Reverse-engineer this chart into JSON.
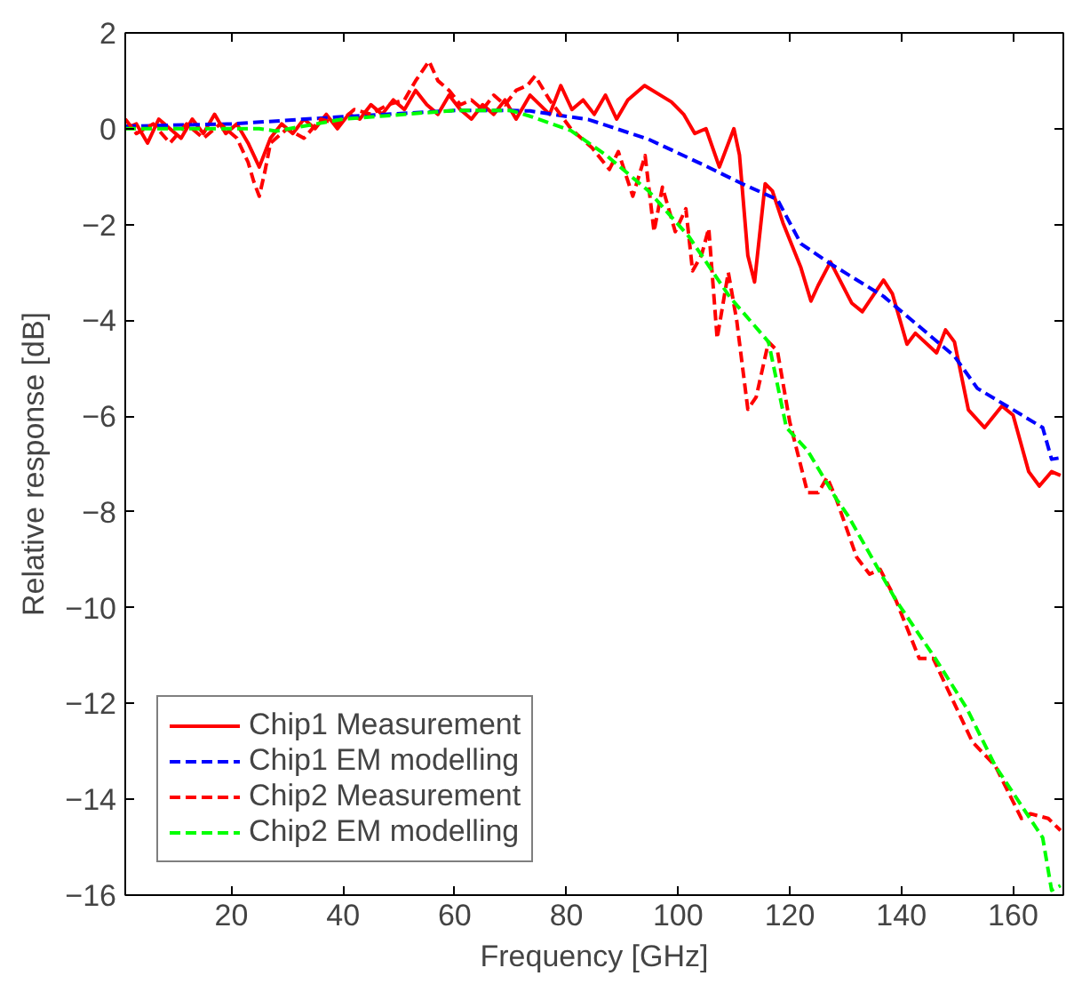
{
  "chart_data": {
    "type": "line",
    "xlabel": "Frequency [GHz]",
    "ylabel": "Relative response [dB]",
    "xlim": [
      1,
      169
    ],
    "ylim": [
      -16,
      2
    ],
    "xticks": [
      20,
      40,
      60,
      80,
      100,
      120,
      140,
      160
    ],
    "yticks": [
      -16,
      -14,
      -12,
      -10,
      -8,
      -6,
      -4,
      -2,
      0,
      2
    ],
    "grid": false,
    "legend": "bottom left",
    "series": [
      {
        "name": "Chip1 Measurement",
        "color": "#ff0000",
        "line_style": "solid",
        "x": [
          1,
          3,
          5,
          7,
          9,
          11,
          13,
          15,
          17,
          19,
          21,
          23,
          25,
          27,
          29,
          31,
          33,
          35,
          37,
          39,
          41,
          43,
          45,
          47,
          49,
          51,
          53,
          55,
          57,
          59,
          61,
          63,
          65,
          67,
          69,
          71,
          73.5,
          77,
          79,
          81,
          83,
          85,
          87,
          89,
          91,
          94,
          98.8,
          101,
          103,
          105,
          107.4,
          110,
          111,
          112.5,
          113.7,
          115.6,
          116.9,
          118.8,
          122,
          123.8,
          125.1,
          127.3,
          131.1,
          133,
          136.8,
          138.4,
          141,
          142.5,
          146.3,
          147.9,
          149.5,
          152,
          154.9,
          158,
          160,
          162.8,
          164.7,
          166.9,
          168.5
        ],
        "values": [
          0,
          0.1,
          -0.3,
          0.2,
          0,
          -0.2,
          0.2,
          -0.1,
          0.3,
          -0.1,
          0.1,
          -0.3,
          -0.8,
          -0.2,
          0.1,
          -0.1,
          0.2,
          0,
          0.3,
          0,
          0.3,
          0.2,
          0.5,
          0.3,
          0.6,
          0.4,
          0.8,
          0.5,
          0.3,
          0.7,
          0.4,
          0.2,
          0.5,
          0.3,
          0.6,
          0.2,
          0.7,
          0.3,
          0.9,
          0.4,
          0.6,
          0.3,
          0.7,
          0.2,
          0.6,
          0.9,
          0.56,
          0.3,
          -0.1,
          0,
          -0.8,
          0,
          -0.55,
          -2.65,
          -3.2,
          -1.15,
          -1.3,
          -1.97,
          -2.9,
          -3.6,
          -3.27,
          -2.78,
          -3.64,
          -3.82,
          -3.16,
          -3.45,
          -4.5,
          -4.27,
          -4.68,
          -4.2,
          -4.45,
          -5.87,
          -6.24,
          -5.79,
          -5.98,
          -7.16,
          -7.46,
          -7.16,
          -7.24
        ]
      },
      {
        "name": "Chip1 EM modelling",
        "color": "#0000ff",
        "line_style": "dashed",
        "x": [
          1,
          20,
          40,
          60,
          70,
          73.5,
          84,
          94.7,
          105,
          111.5,
          117.8,
          122,
          127.3,
          136.8,
          149.5,
          153.6,
          165.3,
          166.9,
          168.5
        ],
        "values": [
          0.05,
          0.1,
          0.25,
          0.38,
          0.38,
          0.37,
          0.19,
          -0.22,
          -0.78,
          -1.15,
          -1.48,
          -2.4,
          -2.82,
          -3.5,
          -4.75,
          -5.42,
          -6.24,
          -6.9,
          -6.87
        ]
      },
      {
        "name": "Chip2 Measurement",
        "color": "#ff0000",
        "line_style": "dashed",
        "x": [
          1,
          3,
          6,
          9,
          12,
          15,
          18,
          21,
          23,
          24,
          25,
          26,
          27,
          30,
          33,
          36,
          39,
          42,
          45,
          48,
          51,
          53,
          55.4,
          57,
          59,
          61,
          63,
          65,
          67,
          69,
          71,
          73,
          74.4,
          77,
          80.8,
          84.6,
          87.7,
          89.3,
          91.9,
          94.1,
          95.7,
          97.2,
          99.5,
          101.4,
          102.6,
          104.2,
          105.5,
          107,
          109,
          110.5,
          112.5,
          114,
          116.2,
          117.8,
          120,
          123.2,
          125.1,
          126.7,
          128.3,
          132,
          134.3,
          136.2,
          139,
          143.2,
          145.7,
          152.7,
          156.8,
          161.5,
          163.1,
          166.3,
          168.5
        ],
        "values": [
          0.2,
          -0.1,
          0.1,
          -0.3,
          0.1,
          -0.2,
          0.1,
          -0.2,
          -0.7,
          -1.1,
          -1.41,
          -0.9,
          -0.3,
          0,
          -0.2,
          0.2,
          0.1,
          0.4,
          0.3,
          0.5,
          0.6,
          1.0,
          1.41,
          1.0,
          0.8,
          0.5,
          0.6,
          0.4,
          0.7,
          0.5,
          0.8,
          0.9,
          1.1,
          0.6,
          0,
          -0.4,
          -0.85,
          -0.48,
          -1.41,
          -0.56,
          -2.15,
          -1.22,
          -2.15,
          -1.67,
          -2.97,
          -2.64,
          -2.08,
          -4.38,
          -3.0,
          -4.0,
          -5.86,
          -5.6,
          -4.45,
          -4.64,
          -6.12,
          -7.6,
          -7.6,
          -7.28,
          -7.72,
          -8.95,
          -9.3,
          -9.2,
          -9.84,
          -11.06,
          -11.06,
          -12.8,
          -13.3,
          -14.4,
          -14.3,
          -14.4,
          -14.65
        ]
      },
      {
        "name": "Chip2 EM modelling",
        "color": "#00ff00",
        "line_style": "dashed",
        "x": [
          1,
          25,
          28,
          40,
          60,
          70,
          73.5,
          80.8,
          87.1,
          94.7,
          102,
          109.3,
          116.2,
          119.4,
          123.2,
          128.3,
          130.5,
          139,
          146.3,
          151.7,
          156.8,
          165.3,
          166.9,
          168.5
        ],
        "values": [
          0,
          0,
          -0.05,
          0.2,
          0.38,
          0.38,
          0.26,
          -0.04,
          -0.55,
          -1.3,
          -2.26,
          -3.52,
          -4.45,
          -6.24,
          -6.72,
          -7.72,
          -8.09,
          -9.84,
          -11.1,
          -12.1,
          -13.3,
          -14.8,
          -15.9,
          -15.8
        ]
      }
    ]
  }
}
